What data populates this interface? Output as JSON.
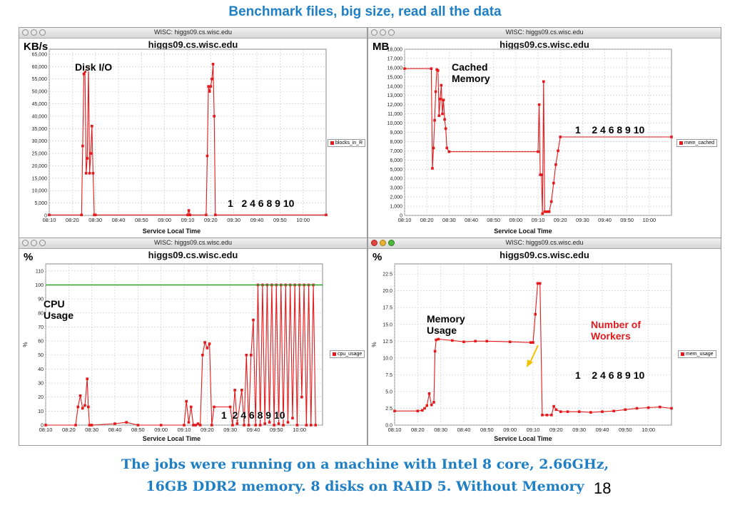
{
  "slide": {
    "title": "Benchmark files, big size, read all the data",
    "caption_line1": "The jobs were running on a machine with Intel 8 core, 2.66GHz,",
    "caption_line2": "16GB DDR2 memory. 8 disks on RAID 5. Without Memory",
    "page_number": "18"
  },
  "colors": {
    "series": "#e31a1c",
    "reference_line": "#2ca02c",
    "arrow": "#f2c200",
    "title_blue": "#1f7fc4"
  },
  "windows": [
    {
      "window_title": "WISC: higgs09.cs.wisc.edu",
      "chart_title": "higgs09.cs.wisc.edu",
      "unit": "KB/s",
      "ylabel": "",
      "xlabel": "Service Local Time",
      "legend": "blocks_in_R",
      "annotations": {
        "a1": "Disk I/O",
        "a2": "1   2 4 6 8 9 10"
      },
      "active": false
    },
    {
      "window_title": "WISC: higgs09.cs.wisc.edu",
      "chart_title": "higgs09.cs.wisc.edu",
      "unit": "MB",
      "ylabel": "",
      "xlabel": "Service Local Time",
      "legend": "mem_cached",
      "annotations": {
        "a1": "Cached\nMemory",
        "a2": "1    2 4 6 8 9 10"
      },
      "active": false
    },
    {
      "window_title": "WISC: higgs09.cs.wisc.edu",
      "chart_title": "higgs09.cs.wisc.edu",
      "unit": "%",
      "ylabel": "%",
      "xlabel": "Service Local Time",
      "legend": "cpu_usage",
      "annotations": {
        "a1": "CPU\nUsage",
        "a2": "1  2 4 6 8 9 10"
      },
      "active": false
    },
    {
      "window_title": "WISC: higgs09.cs.wisc.edu",
      "chart_title": "higgs09.cs.wisc.edu",
      "unit": "%",
      "ylabel": "%",
      "xlabel": "Service Local Time",
      "legend": "mem_usage",
      "annotations": {
        "a1": "Memory\nUsage",
        "a2": "1    2 4 6 8 9 10",
        "a3": "Number of\nWorkers"
      },
      "active": true
    }
  ],
  "chart_data": [
    {
      "type": "line",
      "title": "higgs09.cs.wisc.edu",
      "xlabel": "Service Local Time",
      "ylabel": "KB/s",
      "x_ticks": [
        "08:10",
        "08:20",
        "08:30",
        "08:40",
        "08:50",
        "09:00",
        "09:10",
        "09:20",
        "09:30",
        "09:40",
        "09:50",
        "10:00"
      ],
      "y_ticks": [
        "0",
        "5,000",
        "10,000",
        "15,000",
        "20,000",
        "25,000",
        "30,000",
        "35,000",
        "40,000",
        "45,000",
        "50,000",
        "55,000",
        "60,000",
        "65,000"
      ],
      "ylim": [
        0,
        67000
      ],
      "xlim": [
        "08:10",
        "10:10"
      ],
      "grid": true,
      "legend_position": "right",
      "series": [
        {
          "name": "blocks_in_R",
          "x": [
            "08:10",
            "08:24",
            "08:24.5",
            "08:25",
            "08:25.5",
            "08:26",
            "08:26.5",
            "08:27",
            "08:27.5",
            "08:28",
            "08:28.5",
            "08:29",
            "08:29.5",
            "08:30",
            "09:10",
            "09:10.5",
            "09:11",
            "09:18",
            "09:18.5",
            "09:19",
            "09:19.5",
            "09:20",
            "09:20.5",
            "09:21",
            "09:21.5",
            "09:22",
            "10:10"
          ],
          "y": [
            200,
            200,
            28000,
            57000,
            58000,
            17000,
            23000,
            60000,
            17000,
            25000,
            36000,
            17000,
            200,
            200,
            200,
            2000,
            200,
            200,
            24000,
            52000,
            50000,
            52000,
            55000,
            61000,
            40000,
            200,
            200
          ]
        }
      ]
    },
    {
      "type": "line",
      "title": "higgs09.cs.wisc.edu",
      "xlabel": "Service Local Time",
      "ylabel": "MB",
      "x_ticks": [
        "08:10",
        "08:20",
        "08:30",
        "08:40",
        "08:50",
        "09:00",
        "09:10",
        "09:20",
        "09:30",
        "09:40",
        "09:50",
        "10:00"
      ],
      "y_ticks": [
        "0",
        "1,000",
        "2,000",
        "3,000",
        "4,000",
        "5,000",
        "6,000",
        "7,000",
        "8,000",
        "9,000",
        "10,000",
        "11,000",
        "12,000",
        "13,000",
        "14,000",
        "15,000",
        "16,000",
        "17,000",
        "18,000"
      ],
      "ylim": [
        0,
        18000
      ],
      "xlim": [
        "08:10",
        "10:10"
      ],
      "grid": true,
      "legend_position": "right",
      "series": [
        {
          "name": "mem_cached",
          "x": [
            "08:10",
            "08:22",
            "08:22.5",
            "08:23",
            "08:23.5",
            "08:24",
            "08:24.5",
            "08:25",
            "08:25.5",
            "08:26",
            "08:26.5",
            "08:27",
            "08:27.5",
            "08:28",
            "08:28.5",
            "08:29",
            "08:30",
            "09:10",
            "09:10.5",
            "09:11",
            "09:11.5",
            "09:12",
            "09:12.5",
            "09:13",
            "09:14",
            "09:15",
            "09:16",
            "09:17",
            "09:18",
            "09:19",
            "09:20",
            "10:10"
          ],
          "y": [
            15900,
            15900,
            5100,
            7300,
            10300,
            13400,
            15800,
            15700,
            10800,
            12600,
            14100,
            11000,
            12500,
            10400,
            9400,
            7300,
            6900,
            6900,
            12000,
            4400,
            4400,
            200,
            14500,
            400,
            400,
            400,
            1500,
            3500,
            5500,
            7000,
            8500,
            8500
          ]
        }
      ]
    },
    {
      "type": "line",
      "title": "higgs09.cs.wisc.edu",
      "xlabel": "Service Local Time",
      "ylabel": "%",
      "x_ticks": [
        "08:10",
        "08:20",
        "08:30",
        "08:40",
        "08:50",
        "09:00",
        "09:10",
        "09:20",
        "09:30",
        "09:40",
        "09:50",
        "10:00"
      ],
      "y_ticks": [
        "0",
        "10",
        "20",
        "30",
        "40",
        "50",
        "60",
        "70",
        "80",
        "90",
        "100",
        "110"
      ],
      "ylim": [
        0,
        115
      ],
      "xlim": [
        "08:10",
        "10:10"
      ],
      "grid": true,
      "legend_position": "right",
      "series": [
        {
          "name": "cpu_usage",
          "x": [
            "08:10",
            "08:23",
            "08:24",
            "08:25",
            "08:26",
            "08:27",
            "08:28",
            "08:28.5",
            "08:29",
            "08:30",
            "08:40",
            "08:45",
            "08:50",
            "09:00",
            "09:10",
            "09:11",
            "09:12",
            "09:13",
            "09:14",
            "09:15",
            "09:16",
            "09:17",
            "09:18",
            "09:19",
            "09:20",
            "09:21",
            "09:22",
            "09:23",
            "09:30",
            "09:31",
            "09:32",
            "09:33",
            "09:35",
            "09:36",
            "09:37",
            "09:38",
            "09:39",
            "09:40",
            "09:41",
            "09:42",
            "09:43",
            "09:44",
            "09:45",
            "09:46",
            "09:47",
            "09:48",
            "09:49",
            "09:50",
            "09:51",
            "09:52",
            "09:53",
            "09:54",
            "09:55",
            "09:56",
            "09:57",
            "09:58",
            "09:59",
            "10:00",
            "10:01",
            "10:02",
            "10:03",
            "10:04",
            "10:05",
            "10:06",
            "10:07"
          ],
          "y": [
            0,
            0,
            13,
            21,
            12,
            14,
            33,
            13,
            0,
            0,
            1,
            2,
            0,
            0,
            0,
            17,
            2,
            13,
            0,
            0,
            1,
            0,
            50,
            59,
            55,
            58,
            0,
            13,
            13,
            0,
            25,
            1,
            25,
            0,
            50,
            0,
            50,
            75,
            0,
            100,
            0,
            100,
            1,
            100,
            2,
            100,
            0,
            100,
            1,
            100,
            0,
            100,
            2,
            100,
            5,
            100,
            0,
            100,
            20,
            100,
            0,
            100,
            0,
            100,
            0
          ]
        },
        {
          "name": "",
          "x": [
            "08:10",
            "10:10"
          ],
          "y": [
            100,
            100
          ]
        }
      ]
    },
    {
      "type": "line",
      "title": "higgs09.cs.wisc.edu",
      "xlabel": "Service Local Time",
      "ylabel": "%",
      "x_ticks": [
        "08:10",
        "08:20",
        "08:30",
        "08:40",
        "08:50",
        "09:00",
        "09:10",
        "09:20",
        "09:30",
        "09:40",
        "09:50",
        "10:00"
      ],
      "y_ticks": [
        "0.0",
        "2.5",
        "5.0",
        "7.5",
        "10.0",
        "12.5",
        "15.0",
        "17.5",
        "20.0",
        "22.5"
      ],
      "ylim": [
        0,
        24
      ],
      "xlim": [
        "08:10",
        "10:10"
      ],
      "grid": true,
      "legend_position": "right",
      "series": [
        {
          "name": "mem_usage",
          "x": [
            "08:10",
            "08:20",
            "08:22",
            "08:23",
            "08:24",
            "08:25",
            "08:26",
            "08:27",
            "08:27.5",
            "08:28",
            "08:29",
            "08:35",
            "08:40",
            "08:45",
            "08:50",
            "09:00",
            "09:09",
            "09:10",
            "09:11",
            "09:12",
            "09:13",
            "09:14",
            "09:16",
            "09:18",
            "09:19",
            "09:20",
            "09:22",
            "09:25",
            "09:30",
            "09:35",
            "09:40",
            "09:45",
            "09:50",
            "09:55",
            "10:00",
            "10:05",
            "10:10"
          ],
          "y": [
            2.1,
            2.1,
            2.2,
            2.5,
            2.9,
            4.7,
            3.0,
            3.4,
            11.0,
            12.7,
            12.8,
            12.6,
            12.4,
            12.5,
            12.5,
            12.4,
            12.3,
            12.3,
            16.5,
            21.1,
            21.1,
            1.5,
            1.5,
            1.5,
            2.8,
            2.3,
            2.0,
            2.0,
            2.0,
            1.9,
            2.0,
            2.1,
            2.3,
            2.5,
            2.6,
            2.7,
            2.5
          ]
        }
      ]
    }
  ]
}
